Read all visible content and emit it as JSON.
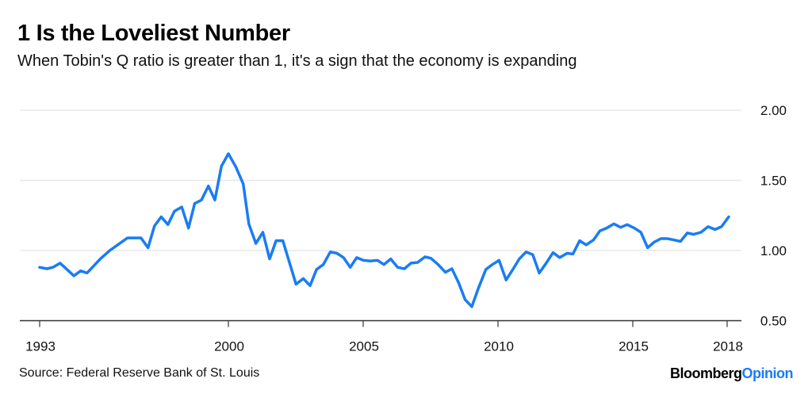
{
  "brand": {
    "part1": "Bloomberg",
    "part2": "Opinion"
  },
  "chart_data": {
    "type": "line",
    "title": "1 Is the Loveliest Number",
    "subtitle": "When Tobin's Q ratio is greater than 1, it's a sign that the economy is expanding",
    "source": "Source: Federal Reserve Bank of St. Louis",
    "xlabel": "",
    "ylabel": "",
    "ylim": [
      0.5,
      2.0
    ],
    "xlim": [
      1993,
      2018.55
    ],
    "yticks": [
      {
        "value": 2.0,
        "label": "2.00"
      },
      {
        "value": 1.5,
        "label": "1.50"
      },
      {
        "value": 1.0,
        "label": "1.00"
      },
      {
        "value": 0.5,
        "label": "0.50"
      }
    ],
    "xticks": [
      {
        "value": 1993,
        "label": "1993"
      },
      {
        "value": 2000,
        "label": "2000"
      },
      {
        "value": 2005,
        "label": "2005"
      },
      {
        "value": 2010,
        "label": "2010"
      },
      {
        "value": 2015,
        "label": "2015"
      },
      {
        "value": 2018.5,
        "label": "2018"
      }
    ],
    "grid": true,
    "line_color": "#1a7cf5",
    "series": [
      {
        "name": "Tobin's Q ratio",
        "points": [
          [
            1993.0,
            0.88
          ],
          [
            1993.27,
            0.87
          ],
          [
            1993.49,
            0.88
          ],
          [
            1993.76,
            0.91
          ],
          [
            1994.27,
            0.82
          ],
          [
            1994.52,
            0.855
          ],
          [
            1994.76,
            0.84
          ],
          [
            1995.25,
            0.94
          ],
          [
            1995.6,
            1.0
          ],
          [
            1995.89,
            1.04
          ],
          [
            1996.26,
            1.09
          ],
          [
            1996.76,
            1.09
          ],
          [
            1997.02,
            1.02
          ],
          [
            1997.26,
            1.175
          ],
          [
            1997.51,
            1.24
          ],
          [
            1997.76,
            1.185
          ],
          [
            1998.0,
            1.28
          ],
          [
            1998.27,
            1.31
          ],
          [
            1998.52,
            1.16
          ],
          [
            1998.75,
            1.335
          ],
          [
            1999.0,
            1.36
          ],
          [
            1999.26,
            1.46
          ],
          [
            1999.5,
            1.36
          ],
          [
            1999.74,
            1.6
          ],
          [
            2000.0,
            1.69
          ],
          [
            2000.28,
            1.595
          ],
          [
            2000.55,
            1.475
          ],
          [
            2000.76,
            1.19
          ],
          [
            2001.02,
            1.05
          ],
          [
            2001.28,
            1.13
          ],
          [
            2001.53,
            0.94
          ],
          [
            2001.77,
            1.07
          ],
          [
            2002.02,
            1.07
          ],
          [
            2002.51,
            0.76
          ],
          [
            2002.78,
            0.8
          ],
          [
            2003.03,
            0.75
          ],
          [
            2003.27,
            0.865
          ],
          [
            2003.52,
            0.9
          ],
          [
            2003.78,
            0.99
          ],
          [
            2004.03,
            0.98
          ],
          [
            2004.27,
            0.95
          ],
          [
            2004.52,
            0.88
          ],
          [
            2004.76,
            0.95
          ],
          [
            2005.01,
            0.93
          ],
          [
            2005.26,
            0.925
          ],
          [
            2005.53,
            0.93
          ],
          [
            2005.77,
            0.9
          ],
          [
            2006.02,
            0.94
          ],
          [
            2006.28,
            0.88
          ],
          [
            2006.53,
            0.87
          ],
          [
            2006.77,
            0.91
          ],
          [
            2007.02,
            0.915
          ],
          [
            2007.29,
            0.955
          ],
          [
            2007.51,
            0.945
          ],
          [
            2007.78,
            0.9
          ],
          [
            2008.05,
            0.845
          ],
          [
            2008.29,
            0.87
          ],
          [
            2008.54,
            0.77
          ],
          [
            2008.78,
            0.65
          ],
          [
            2009.03,
            0.6
          ],
          [
            2009.27,
            0.73
          ],
          [
            2009.55,
            0.865
          ],
          [
            2009.79,
            0.9
          ],
          [
            2010.04,
            0.93
          ],
          [
            2010.3,
            0.79
          ],
          [
            2010.55,
            0.865
          ],
          [
            2010.79,
            0.94
          ],
          [
            2011.04,
            0.99
          ],
          [
            2011.29,
            0.97
          ],
          [
            2011.53,
            0.84
          ],
          [
            2011.77,
            0.905
          ],
          [
            2012.04,
            0.985
          ],
          [
            2012.29,
            0.95
          ],
          [
            2012.56,
            0.98
          ],
          [
            2012.78,
            0.975
          ],
          [
            2013.03,
            1.07
          ],
          [
            2013.27,
            1.04
          ],
          [
            2013.54,
            1.075
          ],
          [
            2013.78,
            1.14
          ],
          [
            2014.03,
            1.16
          ],
          [
            2014.3,
            1.19
          ],
          [
            2014.55,
            1.165
          ],
          [
            2014.79,
            1.185
          ],
          [
            2015.06,
            1.16
          ],
          [
            2015.3,
            1.13
          ],
          [
            2015.55,
            1.02
          ],
          [
            2015.79,
            1.06
          ],
          [
            2016.04,
            1.085
          ],
          [
            2016.28,
            1.085
          ],
          [
            2016.53,
            1.075
          ],
          [
            2016.77,
            1.065
          ],
          [
            2017.02,
            1.125
          ],
          [
            2017.26,
            1.115
          ],
          [
            2017.53,
            1.13
          ],
          [
            2017.79,
            1.17
          ],
          [
            2018.05,
            1.15
          ],
          [
            2018.29,
            1.17
          ],
          [
            2018.56,
            1.24
          ]
        ]
      }
    ]
  }
}
